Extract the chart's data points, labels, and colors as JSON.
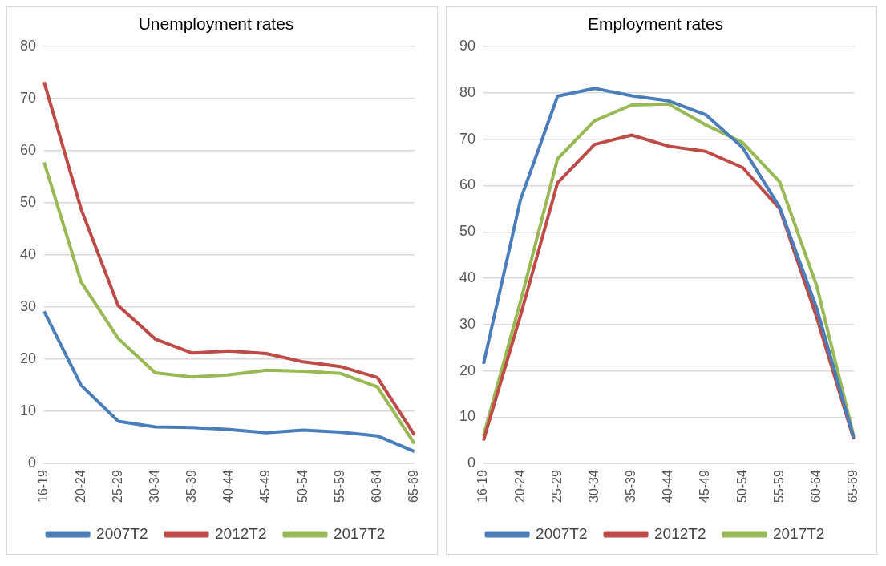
{
  "chart_data": [
    {
      "type": "line",
      "title": "Unemployment rates",
      "categories": [
        "16-19",
        "20-24",
        "25-29",
        "30-34",
        "35-39",
        "40-44",
        "45-49",
        "50-54",
        "55-59",
        "60-64",
        "65-69"
      ],
      "series": [
        {
          "name": "2007T2",
          "color": "#4a7ebb",
          "values": [
            29.2,
            15,
            8.1,
            7,
            6.9,
            6.5,
            5.9,
            6.4,
            6,
            5.3,
            2.3
          ]
        },
        {
          "name": "2012T2",
          "color": "#be4b48",
          "values": [
            73.2,
            48.8,
            30.3,
            23.9,
            21.2,
            21.6,
            21.1,
            19.5,
            18.6,
            16.5,
            5.5
          ]
        },
        {
          "name": "2017T2",
          "color": "#98b954",
          "values": [
            57.8,
            34.8,
            24,
            17.4,
            16.6,
            17,
            17.9,
            17.7,
            17.3,
            14.7,
            3.8
          ]
        }
      ],
      "ylim": [
        0,
        80
      ],
      "yticks": [
        0,
        10,
        20,
        30,
        40,
        50,
        60,
        70,
        80
      ],
      "grid": "y",
      "legend": "bottom",
      "marker": "none",
      "line_style": "solid"
    },
    {
      "type": "line",
      "title": "Employment rates",
      "categories": [
        "16-19",
        "20-24",
        "25-29",
        "30-34",
        "35-39",
        "40-44",
        "45-49",
        "50-54",
        "55-59",
        "60-64",
        "65-69"
      ],
      "series": [
        {
          "name": "2007T2",
          "color": "#4a7ebb",
          "values": [
            21.5,
            57,
            79.3,
            81,
            79.4,
            78.3,
            75.3,
            68.2,
            55.3,
            33.5,
            5.5
          ]
        },
        {
          "name": "2012T2",
          "color": "#be4b48",
          "values": [
            5,
            32,
            60.6,
            68.9,
            70.9,
            68.5,
            67.4,
            63.9,
            55,
            31.5,
            5.2
          ]
        },
        {
          "name": "2017T2",
          "color": "#98b954",
          "values": [
            6,
            35,
            65.8,
            74,
            77.4,
            77.6,
            73.1,
            69.3,
            60.8,
            38.3,
            5.9
          ]
        }
      ],
      "ylim": [
        0,
        90
      ],
      "yticks": [
        0,
        10,
        20,
        30,
        40,
        50,
        60,
        70,
        80,
        90
      ],
      "grid": "y",
      "legend": "bottom",
      "marker": "none",
      "line_style": "solid"
    }
  ]
}
